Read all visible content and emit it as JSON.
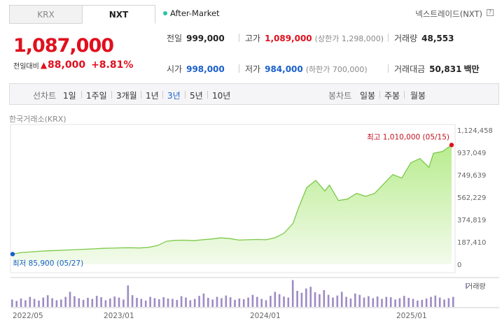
{
  "tabs": [
    {
      "label": "KRX",
      "active": false
    },
    {
      "label": "NXT",
      "active": true
    }
  ],
  "after_market": "After-Market",
  "nxt_label": "넥스트레이드(NXT)",
  "help_icon": "?",
  "price": "1,087,000",
  "change": {
    "label": "전일대비",
    "arrow": "▲",
    "amount": "88,000",
    "percent": "+8.81%"
  },
  "stats": {
    "prev_close": {
      "label": "전일",
      "value": "999,000"
    },
    "high": {
      "label": "고가",
      "value": "1,089,000",
      "sub": "(상한가 1,298,000)"
    },
    "volume": {
      "label": "거래량",
      "value": "48,553"
    },
    "open": {
      "label": "시가",
      "value": "998,000"
    },
    "low": {
      "label": "저가",
      "value": "984,000",
      "sub": "(하한가 700,000)"
    },
    "amount": {
      "label": "거래대금",
      "value": "50,831",
      "unit": "백만"
    }
  },
  "periods": {
    "label": "선차트",
    "items": [
      "1일",
      "1주일",
      "3개월",
      "1년",
      "3년",
      "5년",
      "10년"
    ],
    "selected": "3년"
  },
  "candles": {
    "label": "봉차트",
    "items": [
      "일봉",
      "주봉",
      "월봉"
    ]
  },
  "exchange": "한국거래소(KRX)",
  "colors": {
    "up": "#e0101e",
    "down": "#1a5fcc",
    "line": "#7cc94a",
    "area_top": "#b8ec8e",
    "volume": "#9d8bc5"
  },
  "chart_data": {
    "type": "area",
    "y_ticks": [
      "1,124,458",
      "937,049",
      "749,639",
      "562,229",
      "374,819",
      "187,410",
      "0"
    ],
    "x_ticks": [
      "2022/05",
      "2023/01",
      "2024/01",
      "2025/01"
    ],
    "ylim": [
      0,
      1124458
    ],
    "max_label": "최고 1,010,000 (05/15)",
    "min_label": "최저 85,900 (05/27)",
    "volume_legend": "거래량",
    "price_points": [
      [
        0,
        85900
      ],
      [
        2,
        100000
      ],
      [
        4,
        104000
      ],
      [
        6,
        110000
      ],
      [
        8,
        114000
      ],
      [
        10,
        117000
      ],
      [
        12,
        121000
      ],
      [
        14,
        124000
      ],
      [
        16,
        127000
      ],
      [
        18,
        131000
      ],
      [
        20,
        135000
      ],
      [
        22,
        137000
      ],
      [
        24,
        139000
      ],
      [
        26,
        140000
      ],
      [
        28,
        138000
      ],
      [
        30,
        143000
      ],
      [
        32,
        158000
      ],
      [
        34,
        195000
      ],
      [
        36,
        203000
      ],
      [
        38,
        204000
      ],
      [
        40,
        200000
      ],
      [
        42,
        208000
      ],
      [
        44,
        214000
      ],
      [
        46,
        224000
      ],
      [
        48,
        218000
      ],
      [
        50,
        205000
      ],
      [
        52,
        208000
      ],
      [
        54,
        210000
      ],
      [
        56,
        208000
      ],
      [
        58,
        225000
      ],
      [
        60,
        264000
      ],
      [
        62,
        348000
      ],
      [
        63,
        460000
      ],
      [
        65,
        650000
      ],
      [
        67,
        710000
      ],
      [
        69,
        620000
      ],
      [
        70,
        670000
      ],
      [
        72,
        540000
      ],
      [
        74,
        552000
      ],
      [
        76,
        600000
      ],
      [
        78,
        575000
      ],
      [
        80,
        600000
      ],
      [
        82,
        680000
      ],
      [
        84,
        760000
      ],
      [
        86,
        730000
      ],
      [
        88,
        860000
      ],
      [
        90,
        895000
      ],
      [
        92,
        820000
      ],
      [
        93,
        940000
      ],
      [
        95,
        955000
      ],
      [
        97,
        1010000
      ]
    ],
    "volume": [
      22,
      18,
      25,
      20,
      30,
      24,
      19,
      28,
      35,
      26,
      20,
      22,
      30,
      45,
      32,
      26,
      21,
      27,
      24,
      33,
      29,
      20,
      25,
      31,
      28,
      22,
      64,
      35,
      27,
      24,
      19,
      30,
      26,
      23,
      29,
      25,
      24,
      21,
      32,
      28,
      20,
      24,
      33,
      40,
      27,
      22,
      30,
      26,
      34,
      29,
      21,
      25,
      23,
      28,
      36,
      30,
      24,
      20,
      33,
      45,
      38,
      31,
      28,
      80,
      48,
      42,
      55,
      60,
      44,
      38,
      50,
      36,
      28,
      34,
      45,
      30,
      25,
      40,
      36,
      28,
      32,
      26,
      31,
      24,
      30,
      29,
      22,
      26,
      33,
      27,
      24,
      19,
      21,
      25,
      30,
      34,
      28,
      22,
      26,
      30
    ]
  }
}
